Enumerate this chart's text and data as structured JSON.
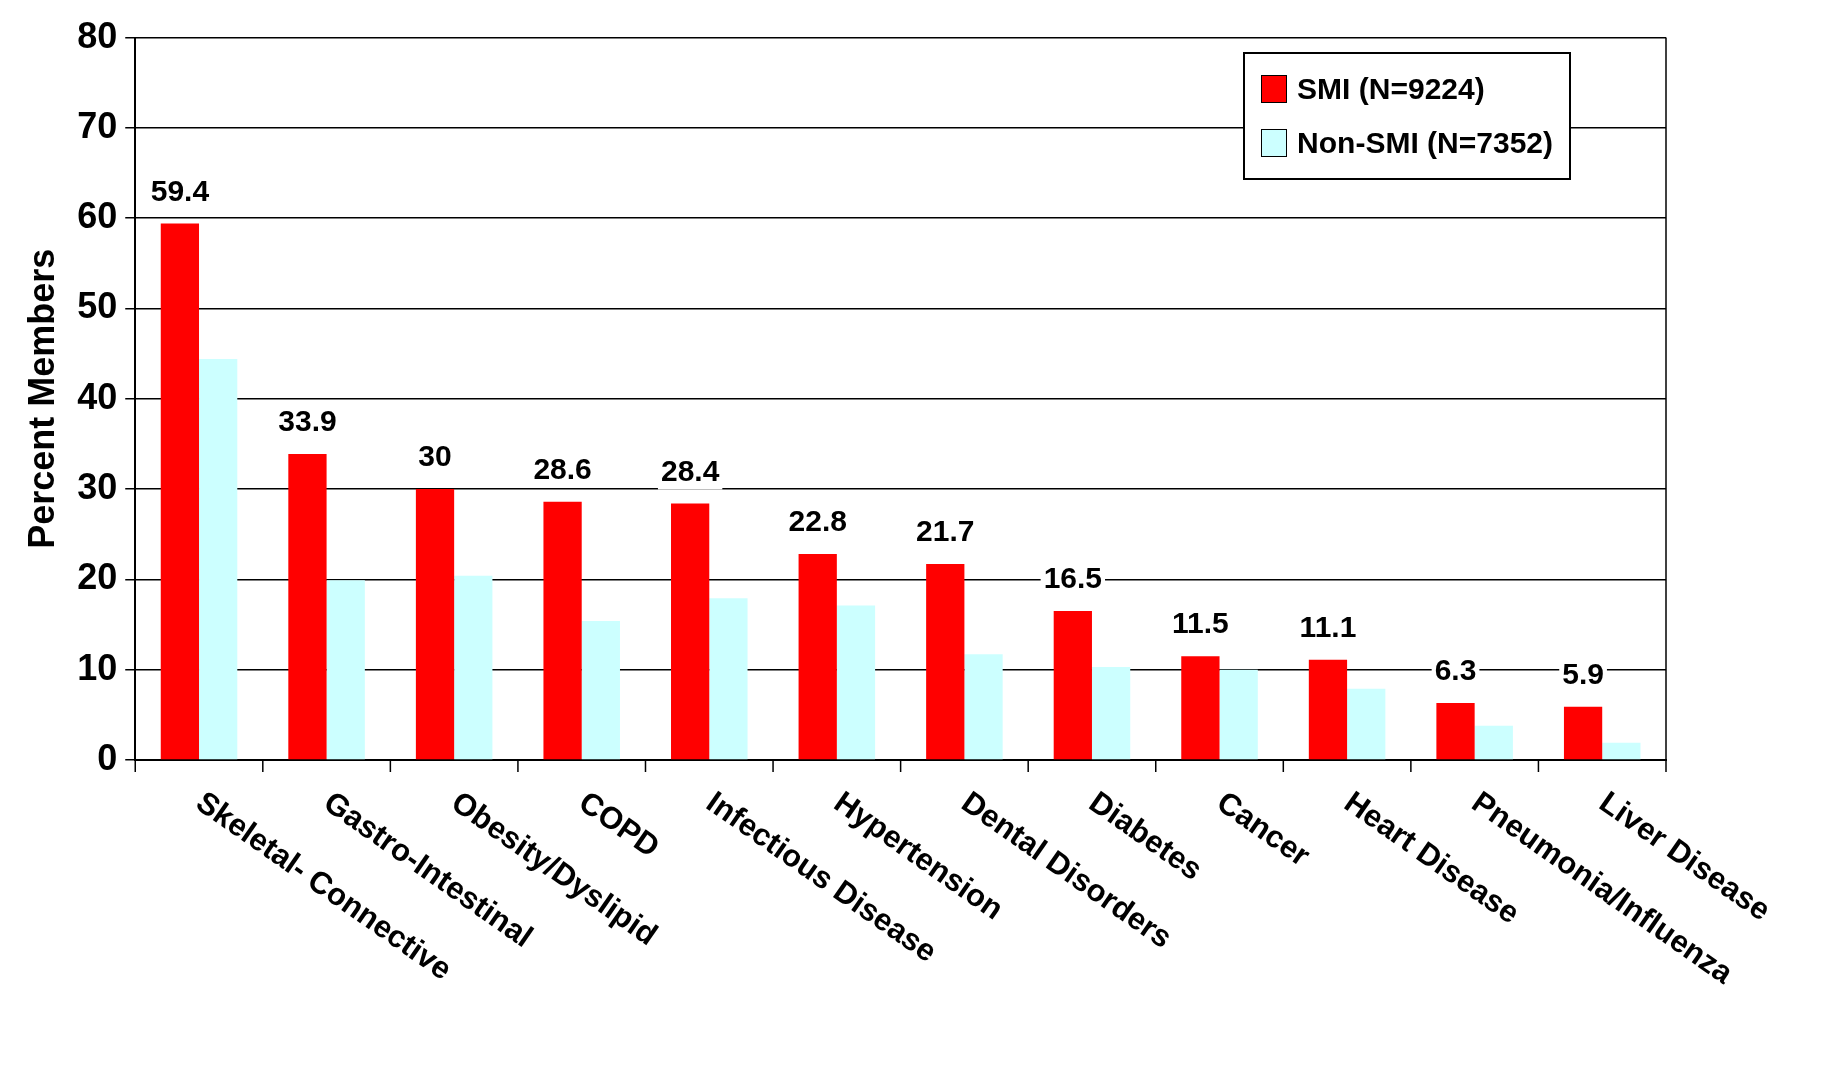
{
  "chart_data": {
    "type": "bar",
    "ylabel": "Percent Members",
    "categories": [
      "Skeletal- Connective",
      "Gastro-Intestinal",
      "Obesity/Dyslipid",
      "COPD",
      "Infectious Disease",
      "Hypertension",
      "Dental Disorders",
      "Diabetes",
      "Cancer",
      "Heart Disease",
      "Pneumonia/Influenza",
      "Liver Disease"
    ],
    "series": [
      {
        "name": "SMI (N=9224)",
        "color": "#ff0000",
        "values": [
          59.4,
          33.9,
          30,
          28.6,
          28.4,
          22.8,
          21.7,
          16.5,
          11.5,
          11.1,
          6.3,
          5.9
        ],
        "value_labels": [
          "59.4",
          "33.9",
          "30",
          "28.6",
          "28.4",
          "22.8",
          "21.7",
          "16.5",
          "11.5",
          "11.1",
          "6.3",
          "5.9"
        ]
      },
      {
        "name": "Non-SMI (N=7352)",
        "color": "#ccffff",
        "values": [
          44.4,
          19.9,
          20.4,
          15.4,
          17.9,
          17.1,
          11.7,
          10.3,
          10.0,
          7.9,
          3.8,
          1.9
        ]
      }
    ],
    "ylim": [
      0,
      80
    ],
    "yticks": [
      0,
      10,
      20,
      30,
      40,
      50,
      60,
      70,
      80
    ],
    "grid": "y",
    "legend": "top right"
  }
}
